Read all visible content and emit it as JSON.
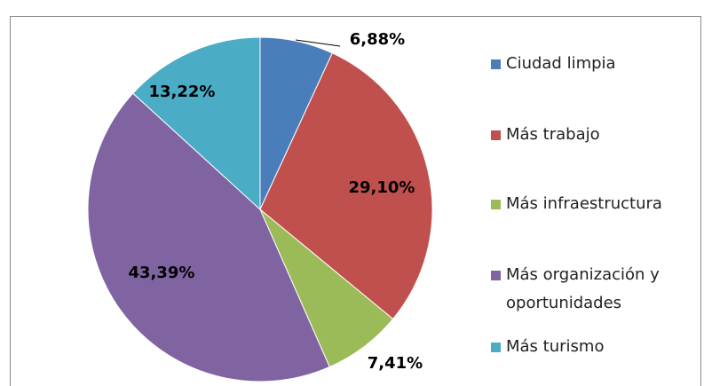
{
  "chart_data": {
    "type": "pie",
    "categories": [
      "Ciudad limpia",
      "Más trabajo",
      "Más infraestructura",
      "Más organización y oportunidades",
      "Más turismo"
    ],
    "values": [
      6.88,
      29.1,
      7.41,
      43.39,
      13.22
    ],
    "value_labels": [
      "6,88%",
      "29,10%",
      "7,41%",
      "43,39%",
      "13,22%"
    ],
    "colors": [
      "#4a7ebb",
      "#c0504d",
      "#9bbb59",
      "#8064a2",
      "#4bacc6"
    ],
    "legend": "right"
  }
}
